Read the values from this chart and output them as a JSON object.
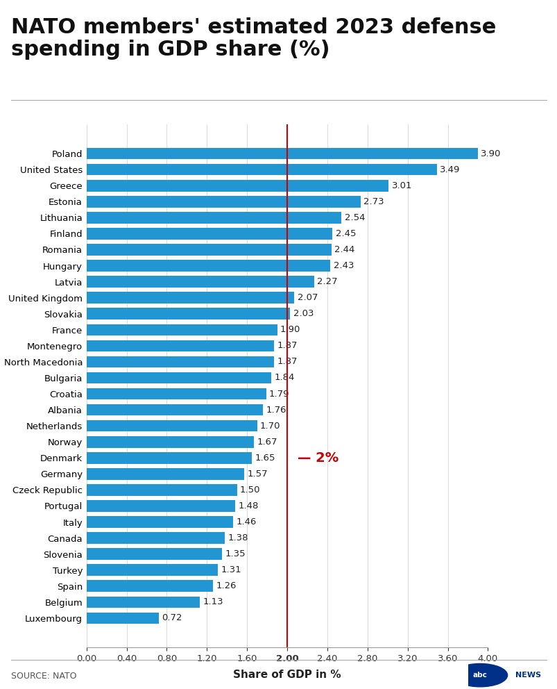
{
  "title": "NATO members' estimated 2023 defense\nspending in GDP share (%)",
  "xlabel": "Share of GDP in %",
  "source": "SOURCE: NATO",
  "bar_color": "#2196d3",
  "ref_line_x": 2.0,
  "ref_line_label": "2%",
  "xlim": [
    0,
    4.0
  ],
  "xticks": [
    0.0,
    0.4,
    0.8,
    1.2,
    1.6,
    2.0,
    2.4,
    2.8,
    3.2,
    3.6,
    4.0
  ],
  "xtick_labels": [
    "0.00",
    "0.40",
    "0.80",
    "1.20",
    "1.60",
    "2.00",
    "2.40",
    "2.80",
    "3.20",
    "3.60",
    "4.00"
  ],
  "countries": [
    "Poland",
    "United States",
    "Greece",
    "Estonia",
    "Lithuania",
    "Finland",
    "Romania",
    "Hungary",
    "Latvia",
    "United Kingdom",
    "Slovakia",
    "France",
    "Montenegro",
    "North Macedonia",
    "Bulgaria",
    "Croatia",
    "Albania",
    "Netherlands",
    "Norway",
    "Denmark",
    "Germany",
    "Czeck Republic",
    "Portugal",
    "Italy",
    "Canada",
    "Slovenia",
    "Turkey",
    "Spain",
    "Belgium",
    "Luxembourg"
  ],
  "values": [
    3.9,
    3.49,
    3.01,
    2.73,
    2.54,
    2.45,
    2.44,
    2.43,
    2.27,
    2.07,
    2.03,
    1.9,
    1.87,
    1.87,
    1.84,
    1.79,
    1.76,
    1.7,
    1.67,
    1.65,
    1.57,
    1.5,
    1.48,
    1.46,
    1.38,
    1.35,
    1.31,
    1.26,
    1.13,
    0.72
  ],
  "background_color": "#ffffff",
  "title_fontsize": 22,
  "label_fontsize": 9.5,
  "value_fontsize": 9.5,
  "xlabel_fontsize": 11,
  "source_fontsize": 9,
  "ref_label_fontsize": 14,
  "ref_line_color": "#cc0000",
  "ref_label_color": "#cc0000",
  "tick_color_2pct": "#cc0000"
}
